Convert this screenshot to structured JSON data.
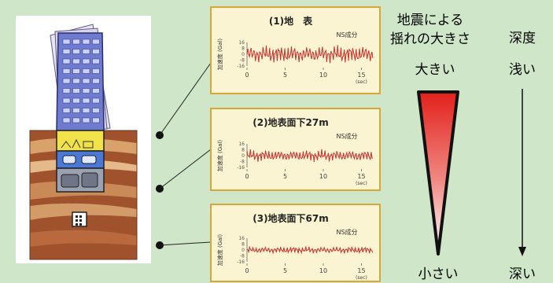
{
  "headings": {
    "shaking_line1": "地震による",
    "shaking_line2": "揺れの大きさ",
    "depth": "深度",
    "large": "大きい",
    "small": "小さい",
    "shallow": "浅い",
    "deep": "深い"
  },
  "panels": [
    {
      "title": "(1)地　表",
      "component": "NS成分",
      "ylabel": "加速度 (Gal)",
      "yticks": [
        "16",
        "8",
        "0",
        "-8",
        "-16"
      ],
      "xticks": [
        "0",
        "5",
        "10",
        "15"
      ],
      "xunit": "(sec)",
      "amplitude": 0.75
    },
    {
      "title": "(2)地表面下27m",
      "component": "NS成分",
      "ylabel": "加速度 (Gal)",
      "yticks": [
        "16",
        "8",
        "0",
        "-8",
        "-16"
      ],
      "xticks": [
        "0",
        "5",
        "10",
        "15"
      ],
      "xunit": "(sec)",
      "amplitude": 0.5
    },
    {
      "title": "(3)地表面下67m",
      "component": "NS成分",
      "ylabel": "加速度 (Gal)",
      "yticks": [
        "16",
        "8",
        "0",
        "-8",
        "-16"
      ],
      "xticks": [
        "0",
        "5",
        "10",
        "15"
      ],
      "xunit": "(sec)",
      "amplitude": 0.3
    }
  ],
  "colors": {
    "background": "#cfe6c9",
    "panel_fill": "#fbf4d2",
    "panel_border": "#d9a63a",
    "wave": "#c9302c",
    "triangle_top": "#e3201b",
    "triangle_bottom": "#ffffff"
  }
}
